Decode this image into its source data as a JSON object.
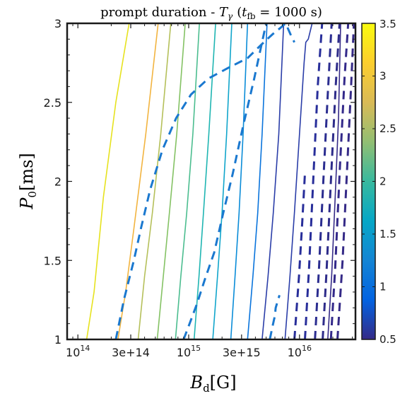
{
  "chart_data": {
    "type": "contour",
    "title": "prompt duration - T_γ (t_fb = 1000 s)",
    "title_parts": {
      "main": "prompt duration - ",
      "symbol": "T",
      "symbol_sub": "γ",
      "paren_open": "(",
      "tvar": "t",
      "tvar_sub": "fb",
      "rest": " = 1000 s)"
    },
    "xlabel_parts": {
      "symbol": "B",
      "sub": "d",
      "unit": "[G]"
    },
    "ylabel_parts": {
      "symbol": "P",
      "sub": "0",
      "unit": "[ms]"
    },
    "x_scale": "log",
    "xlim": [
      80000000000000.0,
      3.2e+16
    ],
    "ylim": [
      1,
      3
    ],
    "x_ticks": [
      {
        "value": 100000000000000.0,
        "base": "10",
        "exp": "14"
      },
      {
        "value": 300000000000000.0,
        "label": "3e+14"
      },
      {
        "value": 1000000000000000.0,
        "base": "10",
        "exp": "15"
      },
      {
        "value": 3000000000000000.0,
        "label": "3e+15"
      },
      {
        "value": 1e+16,
        "base": "10",
        "exp": "16"
      }
    ],
    "y_ticks": [
      {
        "value": 1,
        "label": "1"
      },
      {
        "value": 1.5,
        "label": "1.5"
      },
      {
        "value": 2,
        "label": "2"
      },
      {
        "value": 2.5,
        "label": "2.5"
      },
      {
        "value": 3,
        "label": "3"
      }
    ],
    "colorbar": {
      "colormap": "parula",
      "range": [
        0.5,
        3.5
      ],
      "ticks": [
        {
          "value": 0.5,
          "label": "0.5"
        },
        {
          "value": 1,
          "label": "1"
        },
        {
          "value": 1.5,
          "label": "1.5"
        },
        {
          "value": 2,
          "label": "2"
        },
        {
          "value": 2.5,
          "label": "2.5"
        },
        {
          "value": 3,
          "label": "3"
        },
        {
          "value": 3.5,
          "label": "3.5"
        }
      ],
      "stops": [
        "#352a87",
        "#0363e1",
        "#1485d4",
        "#06a7c6",
        "#38b99e",
        "#92bf73",
        "#d9ba56",
        "#fcce2e",
        "#f9fb0e"
      ]
    },
    "series": [
      {
        "style": "solid",
        "color": "#e6e21e",
        "points": [
          [
            120000000000000.0,
            1.0
          ],
          [
            140000000000000.0,
            1.3
          ],
          [
            170000000000000.0,
            1.9
          ],
          [
            220000000000000.0,
            2.5
          ],
          [
            290000000000000.0,
            3.0
          ]
        ]
      },
      {
        "style": "solid",
        "color": "#f2b440",
        "points": [
          [
            230000000000000.0,
            1.0
          ],
          [
            270000000000000.0,
            1.3
          ],
          [
            320000000000000.0,
            1.7
          ],
          [
            410000000000000.0,
            2.3
          ],
          [
            530000000000000.0,
            3.0
          ]
        ]
      },
      {
        "style": "solid",
        "color": "#b5c05a",
        "points": [
          [
            350000000000000.0,
            1.0
          ],
          [
            400000000000000.0,
            1.4
          ],
          [
            470000000000000.0,
            1.8
          ],
          [
            560000000000000.0,
            2.3
          ],
          [
            690000000000000.0,
            3.0
          ]
        ]
      },
      {
        "style": "solid",
        "color": "#84c264",
        "points": [
          [
            520000000000000.0,
            1.0
          ],
          [
            590000000000000.0,
            1.4
          ],
          [
            670000000000000.0,
            1.8
          ],
          [
            780000000000000.0,
            2.3
          ],
          [
            930000000000000.0,
            3.0
          ]
        ]
      },
      {
        "style": "solid",
        "color": "#4bbd8f",
        "points": [
          [
            760000000000000.0,
            1.0
          ],
          [
            850000000000000.0,
            1.4
          ],
          [
            960000000000000.0,
            1.8
          ],
          [
            1090000000000000.0,
            2.3
          ],
          [
            1250000000000000.0,
            3.0
          ]
        ]
      },
      {
        "style": "solid",
        "color": "#1fb5b2",
        "points": [
          [
            1120000000000000.0,
            1.0
          ],
          [
            1240000000000000.0,
            1.4
          ],
          [
            1360000000000000.0,
            1.8
          ],
          [
            1520000000000000.0,
            2.3
          ],
          [
            1750000000000000.0,
            3.0
          ]
        ]
      },
      {
        "style": "solid",
        "color": "#10a5cb",
        "points": [
          [
            1650000000000000.0,
            1.0
          ],
          [
            1820000000000000.0,
            1.4
          ],
          [
            2000000000000000.0,
            1.8
          ],
          [
            2200000000000000.0,
            2.3
          ],
          [
            2450000000000000.0,
            3.0
          ]
        ]
      },
      {
        "style": "solid",
        "color": "#0a8cd8",
        "points": [
          [
            2400000000000000.0,
            1.0
          ],
          [
            2620000000000000.0,
            1.4
          ],
          [
            2850000000000000.0,
            1.8
          ],
          [
            3100000000000000.0,
            2.3
          ],
          [
            3400000000000000.0,
            3.0
          ]
        ]
      },
      {
        "style": "solid",
        "color": "#0a74dc",
        "points": [
          [
            3400000000000000.0,
            1.0
          ],
          [
            3800000000000000.0,
            1.4
          ],
          [
            4200000000000000.0,
            1.8
          ],
          [
            4600000000000000.0,
            2.3
          ],
          [
            5100000000000000.0,
            3.0
          ]
        ]
      },
      {
        "style": "solid",
        "color": "#2a3da8",
        "points": [
          [
            4600000000000000.0,
            1.0
          ],
          [
            5200000000000000.0,
            1.4
          ],
          [
            5800000000000000.0,
            1.8
          ],
          [
            6500000000000000.0,
            2.3
          ],
          [
            7200000000000000.0,
            3.0
          ]
        ]
      },
      {
        "style": "solid",
        "color": "#2a3da8",
        "points": [
          [
            7400000000000000.0,
            1.0
          ],
          [
            8200000000000000.0,
            1.4
          ],
          [
            9000000000000000.0,
            1.8
          ],
          [
            1e+16,
            2.3
          ],
          [
            1.1e+16,
            2.75
          ],
          [
            1.14e+16,
            2.88
          ],
          [
            1.2e+16,
            2.9
          ],
          [
            1.3e+16,
            3.0
          ]
        ]
      },
      {
        "style": "solid",
        "color": "#352a87",
        "points": [
          [
            1.8e+16,
            1.0
          ],
          [
            1.95e+16,
            1.4
          ],
          [
            2.1e+16,
            1.9
          ],
          [
            2.25e+16,
            2.4
          ],
          [
            2.35e+16,
            3.0
          ]
        ]
      },
      {
        "style": "dashed",
        "color": "#1a78cf",
        "points": [
          [
            220000000000000.0,
            1.0
          ],
          [
            260000000000000.0,
            1.25
          ],
          [
            320000000000000.0,
            1.5
          ],
          [
            370000000000000.0,
            1.7
          ],
          [
            450000000000000.0,
            1.95
          ],
          [
            580000000000000.0,
            2.2
          ],
          [
            770000000000000.0,
            2.4
          ],
          [
            1050000000000000.0,
            2.55
          ],
          [
            1500000000000000.0,
            2.65
          ],
          [
            2300000000000000.0,
            2.72
          ],
          [
            3400000000000000.0,
            2.78
          ],
          [
            4600000000000000.0,
            2.87
          ],
          [
            5700000000000000.0,
            2.93
          ],
          [
            6700000000000000.0,
            2.97
          ],
          [
            7500000000000000.0,
            3.0
          ],
          [
            8300000000000000.0,
            2.93
          ],
          [
            9000000000000000.0,
            2.88
          ]
        ]
      },
      {
        "style": "dashed",
        "color": "#1a78cf",
        "points": [
          [
            900000000000000.0,
            1.0
          ],
          [
            1020000000000000.0,
            1.1
          ],
          [
            1180000000000000.0,
            1.22
          ],
          [
            1400000000000000.0,
            1.38
          ],
          [
            1700000000000000.0,
            1.55
          ],
          [
            2050000000000000.0,
            1.8
          ],
          [
            2500000000000000.0,
            2.05
          ],
          [
            3100000000000000.0,
            2.35
          ],
          [
            3900000000000000.0,
            2.65
          ],
          [
            5000000000000000.0,
            3.0
          ]
        ]
      },
      {
        "style": "dashed",
        "color": "#1a78cf",
        "points": [
          [
            5400000000000000.0,
            1.0
          ],
          [
            5700000000000000.0,
            1.08
          ],
          [
            6000000000000000.0,
            1.15
          ],
          [
            6100000000000000.0,
            1.2
          ],
          [
            6600000000000000.0,
            1.28
          ]
        ]
      },
      {
        "style": "dashed",
        "color": "#282e9a",
        "points": [
          [
            9000000000000000.0,
            1.0
          ],
          [
            9900000000000000.0,
            1.4
          ],
          [
            1.06e+16,
            1.75
          ],
          [
            1.12e+16,
            2.05
          ]
        ]
      },
      {
        "style": "dashed",
        "color": "#282e9a",
        "points": [
          [
            1.12e+16,
            1.0
          ],
          [
            1.22e+16,
            1.45
          ],
          [
            1.34e+16,
            2.05
          ],
          [
            1.46e+16,
            2.6
          ],
          [
            1.6e+16,
            3.0
          ]
        ]
      },
      {
        "style": "dashed",
        "color": "#2b2d90",
        "points": [
          [
            1.38e+16,
            1.0
          ],
          [
            1.5e+16,
            1.45
          ],
          [
            1.64e+16,
            2.0
          ],
          [
            1.8e+16,
            2.55
          ],
          [
            1.95e+16,
            3.0
          ]
        ]
      },
      {
        "style": "dashed",
        "color": "#2e2c8a",
        "points": [
          [
            1.62e+16,
            1.0
          ],
          [
            1.76e+16,
            1.45
          ],
          [
            1.92e+16,
            2.0
          ],
          [
            2.12e+16,
            2.6
          ],
          [
            2.3e+16,
            3.0
          ]
        ]
      },
      {
        "style": "dashed",
        "color": "#33298a",
        "points": [
          [
            1.92e+16,
            1.0
          ],
          [
            2.1e+16,
            1.45
          ],
          [
            2.32e+16,
            2.1
          ],
          [
            2.55e+16,
            2.65
          ],
          [
            2.75e+16,
            3.0
          ]
        ]
      },
      {
        "style": "dashed",
        "color": "#352a87",
        "points": [
          [
            2.2e+16,
            1.0
          ],
          [
            2.45e+16,
            1.5
          ],
          [
            2.7e+16,
            2.1
          ],
          [
            2.92e+16,
            2.6
          ],
          [
            3.1e+16,
            3.0
          ]
        ]
      }
    ]
  }
}
